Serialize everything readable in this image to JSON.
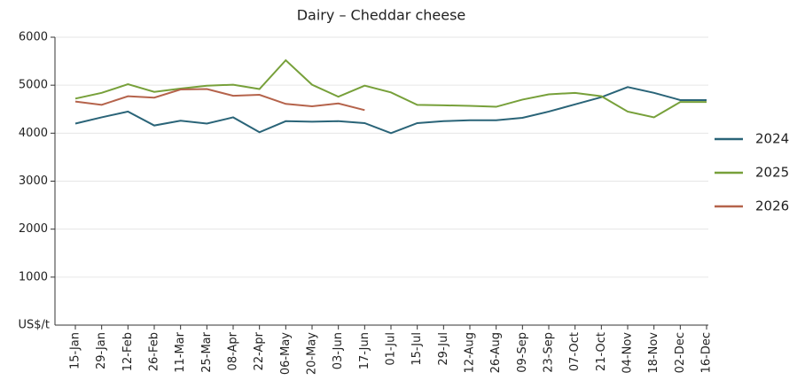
{
  "chart_data": {
    "type": "line",
    "title": "Dairy – Cheddar cheese",
    "y_label": "US$/t",
    "categories": [
      "15-Jan",
      "29-Jan",
      "12-Feb",
      "26-Feb",
      "11-Mar",
      "25-Mar",
      "08-Apr",
      "22-Apr",
      "06-May",
      "20-May",
      "03-Jun",
      "17-Jun",
      "01-Jul",
      "15-Jul",
      "29-Jul",
      "12-Aug",
      "26-Aug",
      "09-Sep",
      "23-Sep",
      "07-Oct",
      "21-Oct",
      "04-Nov",
      "18-Nov",
      "02-Dec",
      "16-Dec"
    ],
    "series": [
      {
        "name": "2024",
        "color": "#2a6478",
        "values": [
          4200,
          4330,
          4450,
          4160,
          4260,
          4200,
          4330,
          4020,
          4250,
          4240,
          4250,
          4210,
          4000,
          4210,
          4250,
          4270,
          4270,
          4320,
          4450,
          4600,
          4750,
          4960,
          4840,
          4690,
          4690
        ]
      },
      {
        "name": "2025",
        "color": "#77a03a",
        "values": [
          4720,
          4840,
          5020,
          4860,
          4930,
          4990,
          5010,
          4920,
          5520,
          5010,
          4760,
          4990,
          4850,
          4590,
          4580,
          4570,
          4550,
          4700,
          4810,
          4840,
          4770,
          4450,
          4330,
          4650,
          4650
        ]
      },
      {
        "name": "2026",
        "color": "#b5634b",
        "values": [
          4660,
          4590,
          4770,
          4740,
          4910,
          4920,
          4780,
          4800,
          4610,
          4560,
          4620,
          4480,
          null,
          null,
          null,
          null,
          null,
          null,
          null,
          null,
          null,
          null,
          null,
          null,
          null
        ]
      }
    ],
    "ylim": [
      0,
      6000
    ],
    "yticks": [
      1000,
      2000,
      3000,
      4000,
      5000,
      6000
    ],
    "grid": true,
    "legend": "right"
  }
}
